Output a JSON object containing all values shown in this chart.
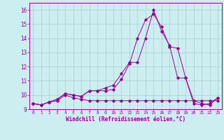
{
  "x": [
    0,
    1,
    2,
    3,
    4,
    5,
    6,
    7,
    8,
    9,
    10,
    11,
    12,
    13,
    14,
    15,
    16,
    17,
    18,
    19,
    20,
    21,
    22,
    23
  ],
  "line1": [
    9.4,
    9.3,
    9.5,
    9.6,
    10.0,
    9.8,
    9.7,
    9.6,
    9.6,
    9.6,
    9.6,
    9.6,
    9.6,
    9.6,
    9.6,
    9.6,
    9.6,
    9.6,
    9.6,
    9.6,
    9.6,
    9.6,
    9.6,
    9.6
  ],
  "line2": [
    9.4,
    9.3,
    9.5,
    9.7,
    10.1,
    10.0,
    9.9,
    10.3,
    10.3,
    10.3,
    10.4,
    11.1,
    12.2,
    14.0,
    15.3,
    15.7,
    14.8,
    13.4,
    13.3,
    11.2,
    9.4,
    9.3,
    9.4,
    9.8
  ],
  "line3": [
    9.4,
    9.3,
    9.5,
    9.7,
    10.1,
    10.0,
    9.9,
    10.3,
    10.3,
    10.5,
    10.7,
    11.5,
    12.3,
    12.3,
    14.0,
    16.0,
    14.5,
    13.5,
    11.2,
    11.2,
    9.6,
    9.4,
    9.3,
    9.8
  ],
  "line_color": "#990099",
  "background_color": "#cceef0",
  "grid_color": "#aacccc",
  "xlabel": "Windchill (Refroidissement éolien,°C)",
  "ylim": [
    9.0,
    16.5
  ],
  "xlim": [
    -0.5,
    23.5
  ],
  "yticks": [
    9,
    10,
    11,
    12,
    13,
    14,
    15,
    16
  ],
  "xticks": [
    0,
    1,
    2,
    3,
    4,
    5,
    6,
    7,
    8,
    9,
    10,
    11,
    12,
    13,
    14,
    15,
    16,
    17,
    18,
    19,
    20,
    21,
    22,
    23
  ]
}
